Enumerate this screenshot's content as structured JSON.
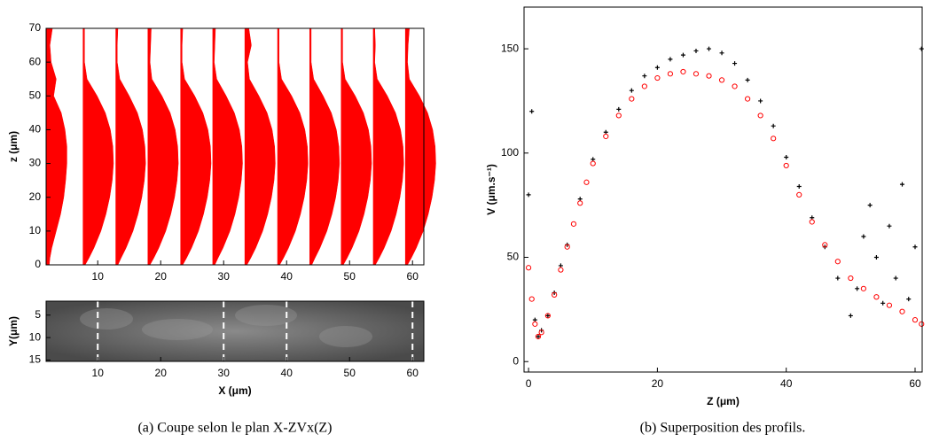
{
  "chart_data": [
    {
      "type": "profiles",
      "ylabel": "z (μm)",
      "color": "#ff0000",
      "xlim": [
        1.8,
        61.8
      ],
      "xticks": [
        10,
        20,
        30,
        40,
        50,
        60
      ],
      "ylim": [
        0,
        70
      ],
      "yticks": [
        0,
        10,
        20,
        30,
        40,
        50,
        60,
        70
      ],
      "z": [
        0,
        2,
        5,
        10,
        15,
        20,
        25,
        30,
        35,
        40,
        45,
        50,
        55,
        60,
        65,
        70
      ],
      "series": [
        {
          "x0": 1.8,
          "values": [
            0.5,
            0.6,
            0.9,
            1.6,
            2.3,
            2.8,
            3.1,
            3.3,
            3.3,
            3.0,
            2.4,
            1.2,
            1.6,
            0.8,
            0.6,
            1.0
          ]
        },
        {
          "x0": 7.7,
          "values": [
            0.3,
            0.9,
            1.7,
            2.8,
            3.6,
            4.2,
            4.6,
            4.8,
            4.7,
            4.3,
            3.5,
            2.2,
            0.6,
            0.2,
            0.2,
            0.2
          ]
        },
        {
          "x0": 12.9,
          "values": [
            0.3,
            0.8,
            1.6,
            2.7,
            3.5,
            4.1,
            4.5,
            4.7,
            4.6,
            4.2,
            3.4,
            2.1,
            0.6,
            0.2,
            0.2,
            0.3
          ]
        },
        {
          "x0": 18.0,
          "values": [
            0.3,
            0.9,
            1.7,
            2.8,
            3.6,
            4.2,
            4.6,
            4.8,
            4.7,
            4.3,
            3.5,
            2.2,
            0.6,
            0.3,
            0.4,
            0.5
          ]
        },
        {
          "x0": 23.2,
          "values": [
            0.3,
            0.9,
            1.7,
            2.8,
            3.6,
            4.2,
            4.6,
            4.8,
            4.7,
            4.3,
            3.5,
            2.2,
            0.6,
            0.2,
            0.2,
            0.3
          ]
        },
        {
          "x0": 28.3,
          "values": [
            0.3,
            0.8,
            1.6,
            2.7,
            3.5,
            4.1,
            4.5,
            4.7,
            4.6,
            4.2,
            3.4,
            2.1,
            0.6,
            0.2,
            0.3,
            0.4
          ]
        },
        {
          "x0": 33.4,
          "values": [
            0.3,
            0.9,
            1.7,
            2.8,
            3.6,
            4.2,
            4.6,
            4.8,
            4.7,
            4.3,
            3.5,
            2.2,
            0.7,
            0.4,
            1.0,
            0.6
          ]
        },
        {
          "x0": 38.6,
          "values": [
            0.3,
            0.9,
            1.7,
            2.8,
            3.6,
            4.2,
            4.6,
            4.8,
            4.7,
            4.3,
            3.5,
            2.2,
            0.6,
            0.2,
            0.2,
            0.2
          ]
        },
        {
          "x0": 43.7,
          "values": [
            0.3,
            0.8,
            1.6,
            2.7,
            3.5,
            4.1,
            4.5,
            4.7,
            4.6,
            4.2,
            3.4,
            2.1,
            0.6,
            0.2,
            0.2,
            0.2
          ]
        },
        {
          "x0": 48.7,
          "values": [
            0.3,
            0.9,
            1.7,
            2.8,
            3.6,
            4.2,
            4.6,
            4.8,
            4.7,
            4.3,
            3.5,
            2.2,
            0.6,
            0.2,
            0.2,
            0.2
          ]
        },
        {
          "x0": 53.8,
          "values": [
            0.3,
            0.9,
            1.7,
            2.8,
            3.6,
            4.2,
            4.6,
            4.8,
            4.7,
            4.3,
            3.5,
            2.2,
            0.6,
            0.2,
            0.3,
            0.2
          ]
        },
        {
          "x0": 58.9,
          "values": [
            0.3,
            0.9,
            1.7,
            2.8,
            3.6,
            4.2,
            4.6,
            4.8,
            4.7,
            4.3,
            3.5,
            2.2,
            0.6,
            0.3,
            0.4,
            0.6
          ]
        }
      ]
    },
    {
      "type": "image",
      "xlabel": "X (μm)",
      "ylabel": "Y(μm)",
      "xlim": [
        1.8,
        61.8
      ],
      "xticks": [
        10,
        20,
        30,
        40,
        50,
        60
      ],
      "ylim": [
        1.9,
        15.3
      ],
      "yticks": [
        5,
        10,
        15
      ],
      "y_reversed": true,
      "vlines": [
        10,
        30,
        40,
        60
      ]
    },
    {
      "type": "scatter",
      "xlabel": "Z (μm)",
      "ylabel": "V (μm.s⁻¹)",
      "xlim": [
        -0.7,
        61.1
      ],
      "xticks": [
        0,
        20,
        40,
        60
      ],
      "ylim": [
        -5,
        170
      ],
      "yticks": [
        0,
        50,
        100,
        150
      ],
      "series": [
        {
          "color": "#000000",
          "marker": "plus",
          "x": [
            0,
            1,
            1.5,
            2,
            3,
            4,
            5,
            6,
            8,
            10,
            12,
            14,
            16,
            18,
            20,
            22,
            24,
            26,
            28,
            30,
            32,
            34,
            36,
            38,
            40,
            42,
            44,
            46,
            48,
            50,
            51,
            52,
            53,
            54,
            55,
            56,
            57,
            58,
            59,
            60,
            0.5,
            61
          ],
          "values": [
            80,
            20,
            12,
            15,
            22,
            33,
            46,
            56,
            78,
            97,
            110,
            121,
            130,
            137,
            141,
            145,
            147,
            149,
            150,
            148,
            143,
            135,
            125,
            113,
            98,
            84,
            69,
            55,
            40,
            22,
            35,
            60,
            75,
            50,
            28,
            65,
            40,
            85,
            30,
            55,
            120,
            150
          ]
        },
        {
          "color": "#ff0000",
          "marker": "circle",
          "x": [
            0,
            0.5,
            1,
            1.5,
            2,
            3,
            4,
            5,
            6,
            7,
            8,
            9,
            10,
            12,
            14,
            16,
            18,
            20,
            22,
            24,
            26,
            28,
            30,
            32,
            34,
            36,
            38,
            40,
            42,
            44,
            46,
            48,
            50,
            52,
            54,
            56,
            58,
            60,
            61
          ],
          "values": [
            45,
            30,
            18,
            12,
            14,
            22,
            32,
            44,
            55,
            66,
            76,
            86,
            95,
            108,
            118,
            126,
            132,
            136,
            138,
            139,
            138,
            137,
            135,
            132,
            126,
            118,
            107,
            94,
            80,
            67,
            56,
            48,
            40,
            35,
            31,
            27,
            24,
            20,
            18
          ]
        }
      ]
    }
  ],
  "captions": [
    "(a) Coupe selon le plan X-ZVx(Z)",
    "(b) Superposition des profils."
  ]
}
